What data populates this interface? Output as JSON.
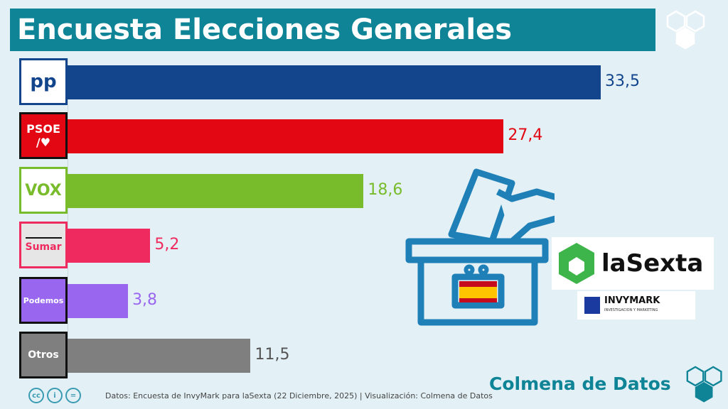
{
  "title": "Encuesta Elecciones Generales",
  "chart_data": {
    "type": "bar",
    "orientation": "horizontal",
    "title": "Encuesta Elecciones Generales",
    "categories": [
      "PP",
      "PSOE",
      "VOX",
      "Sumar",
      "Podemos",
      "Otros"
    ],
    "values": [
      33.5,
      27.4,
      18.6,
      5.2,
      3.8,
      11.5
    ],
    "value_labels": [
      "33,5",
      "27,4",
      "18,6",
      "5,2",
      "3,8",
      "11,5"
    ],
    "colors": [
      "#12458c",
      "#e30613",
      "#78bb2b",
      "#ef2a5f",
      "#9966f0",
      "#7f7f7f"
    ],
    "grid": false
  },
  "logos": [
    "pp",
    "PSOE",
    "VOX",
    "Sumar",
    "Podemos",
    "Otros"
  ],
  "psoe_sub": "/♥",
  "footer": "Datos: Encuesta de InvyMark  para laSexta (22 Diciembre, 2025) | Visualización: Colmena de Datos",
  "cc_icons": [
    "cc",
    "i",
    "="
  ],
  "brand": "Colmena de Datos",
  "media": {
    "lasexta": "laSexta",
    "invymark": "INVYMARK",
    "invymark_sub": "INVESTIGACION Y MARKETING"
  }
}
